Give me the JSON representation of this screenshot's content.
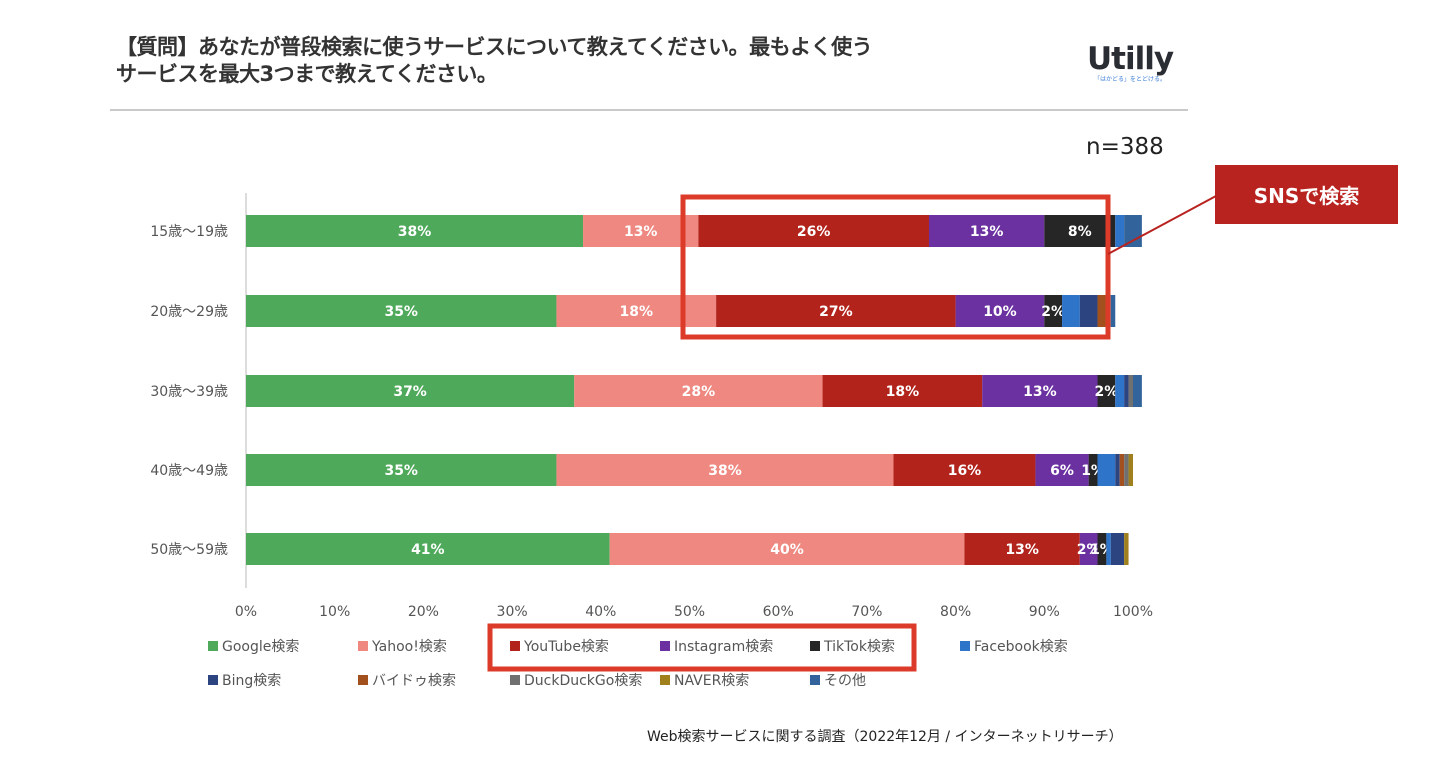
{
  "header": {
    "title_line1": "【質問】あなたが普段検索に使うサービスについて教えてください。最もよく使う",
    "title_line2": "サービスを最大3つまで教えてください。",
    "logo_text": "Utilly",
    "logo_tagline": "「はかどる」をとどける。"
  },
  "sample_size": "n=388",
  "callout": {
    "label": "SNSで検索",
    "color": "#b8231f"
  },
  "source": "Web検索サービスに関する調査（2022年12月 / インターネットリサーチ）",
  "chart_data": {
    "type": "bar",
    "orientation": "horizontal",
    "stacked": true,
    "title": "",
    "xlabel": "",
    "ylabel": "",
    "xlim": [
      0,
      100
    ],
    "x_ticks": [
      "0%",
      "10%",
      "20%",
      "30%",
      "40%",
      "50%",
      "60%",
      "70%",
      "80%",
      "90%",
      "100%"
    ],
    "grid": false,
    "legend_position": "bottom",
    "categories": [
      "15歳〜19歳",
      "20歳〜29歳",
      "30歳〜39歳",
      "40歳〜49歳",
      "50歳〜59歳"
    ],
    "series": [
      {
        "name": "Google検索",
        "color": "#4ea95a",
        "values": [
          38,
          35,
          37,
          35,
          41
        ],
        "labels": [
          "38%",
          "35%",
          "37%",
          "35%",
          "41%"
        ]
      },
      {
        "name": "Yahoo!検索",
        "color": "#ee8880",
        "values": [
          13,
          18,
          28,
          38,
          40
        ],
        "labels": [
          "13%",
          "18%",
          "28%",
          "38%",
          "40%"
        ]
      },
      {
        "name": "YouTube検索",
        "color": "#b2231c",
        "values": [
          26,
          27,
          18,
          16,
          13
        ],
        "labels": [
          "26%",
          "27%",
          "18%",
          "16%",
          "13%"
        ]
      },
      {
        "name": "Instagram検索",
        "color": "#6b31a0",
        "values": [
          13,
          10,
          13,
          6,
          2
        ],
        "labels": [
          "13%",
          "10%",
          "13%",
          "6%",
          "2%"
        ]
      },
      {
        "name": "TikTok検索",
        "color": "#262626",
        "values": [
          8,
          2,
          2,
          1,
          1
        ],
        "labels": [
          "8%",
          "2%",
          "2%",
          "1%",
          "1%"
        ]
      },
      {
        "name": "Facebook検索",
        "color": "#2e74c9",
        "values": [
          1,
          2,
          1,
          2,
          0.5
        ],
        "labels": [
          "",
          "",
          "",
          "",
          ""
        ]
      },
      {
        "name": "Bing検索",
        "color": "#2c4580",
        "values": [
          0,
          2,
          0.5,
          0.5,
          1.5
        ],
        "labels": [
          "",
          "",
          "",
          "",
          ""
        ]
      },
      {
        "name": "バイドゥ検索",
        "color": "#a3501f",
        "values": [
          0,
          1,
          0,
          0.5,
          0
        ],
        "labels": [
          "",
          "",
          "",
          "",
          ""
        ]
      },
      {
        "name": "DuckDuckGo検索",
        "color": "#707070",
        "values": [
          0,
          0.5,
          0.5,
          0.5,
          0
        ],
        "labels": [
          "",
          "",
          "",
          "",
          ""
        ]
      },
      {
        "name": "NAVER検索",
        "color": "#a0801d",
        "values": [
          0,
          0,
          0,
          0.5,
          0.5
        ],
        "labels": [
          "",
          "",
          "",
          "",
          ""
        ]
      },
      {
        "name": "その他",
        "color": "#33639b",
        "values": [
          2,
          0.5,
          1,
          0,
          0
        ],
        "labels": [
          "",
          "",
          "",
          "",
          ""
        ]
      }
    ],
    "annotations": [
      {
        "type": "highlight-box",
        "target": "YouTube / Instagram / TikTok segments of 15歳〜19歳 and 20歳〜29歳",
        "color": "#dd3b29"
      },
      {
        "type": "highlight-box",
        "target": "legend entries YouTube検索 / Instagram検索 / TikTok検索",
        "color": "#dd3b29"
      },
      {
        "type": "callout",
        "text": "SNSで検索"
      }
    ]
  }
}
